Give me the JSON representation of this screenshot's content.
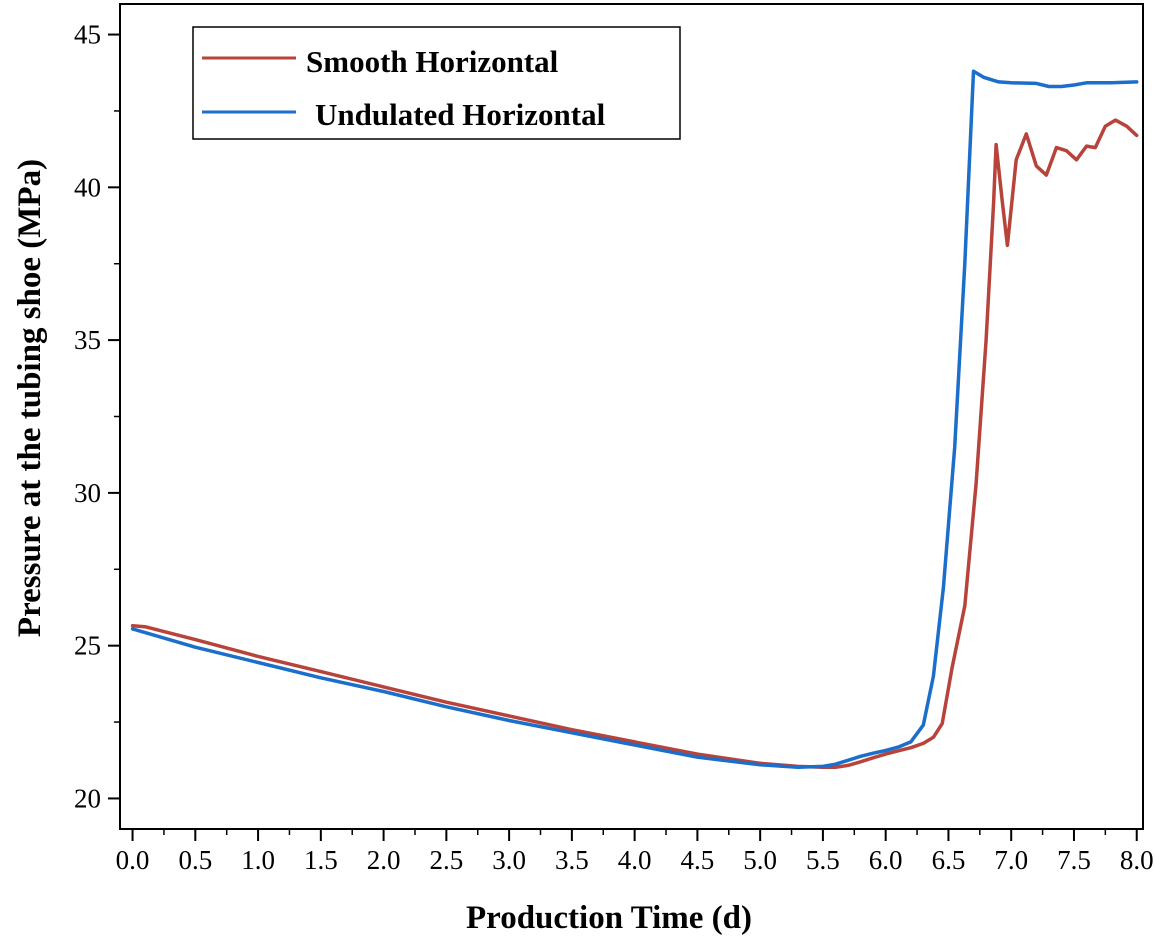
{
  "chart_data": {
    "type": "line",
    "xlabel": "Production Time (d)",
    "ylabel": "Pressure at the tubing shoe (MPa)",
    "xlim": [
      -0.1,
      8.05
    ],
    "ylim": [
      19,
      46
    ],
    "xticks": [
      "0.0",
      "0.5",
      "1.0",
      "1.5",
      "2.0",
      "2.5",
      "3.0",
      "3.5",
      "4.0",
      "4.5",
      "5.0",
      "5.5",
      "6.0",
      "6.5",
      "7.0",
      "7.5",
      "8.0"
    ],
    "yticks": [
      "20",
      "25",
      "30",
      "35",
      "40",
      "45"
    ],
    "legend_position": "top-left",
    "series": [
      {
        "name": "Smooth Horizontal",
        "color": "#b8433b",
        "points": [
          [
            0.0,
            25.65
          ],
          [
            0.1,
            25.62
          ],
          [
            0.5,
            25.2
          ],
          [
            1.0,
            24.65
          ],
          [
            1.5,
            24.15
          ],
          [
            2.0,
            23.65
          ],
          [
            2.5,
            23.15
          ],
          [
            3.0,
            22.7
          ],
          [
            3.5,
            22.25
          ],
          [
            4.0,
            21.85
          ],
          [
            4.5,
            21.45
          ],
          [
            5.0,
            21.15
          ],
          [
            5.3,
            21.05
          ],
          [
            5.5,
            21.02
          ],
          [
            5.6,
            21.02
          ],
          [
            5.7,
            21.08
          ],
          [
            5.8,
            21.2
          ],
          [
            5.9,
            21.33
          ],
          [
            6.0,
            21.45
          ],
          [
            6.1,
            21.56
          ],
          [
            6.2,
            21.66
          ],
          [
            6.3,
            21.8
          ],
          [
            6.38,
            22.0
          ],
          [
            6.45,
            22.45
          ],
          [
            6.53,
            24.3
          ],
          [
            6.63,
            26.3
          ],
          [
            6.72,
            30.3
          ],
          [
            6.8,
            35.0
          ],
          [
            6.86,
            39.5
          ],
          [
            6.88,
            41.4
          ],
          [
            6.93,
            39.5
          ],
          [
            6.97,
            38.1
          ],
          [
            7.04,
            40.9
          ],
          [
            7.12,
            41.75
          ],
          [
            7.2,
            40.7
          ],
          [
            7.28,
            40.4
          ],
          [
            7.36,
            41.3
          ],
          [
            7.44,
            41.2
          ],
          [
            7.52,
            40.9
          ],
          [
            7.6,
            41.35
          ],
          [
            7.67,
            41.3
          ],
          [
            7.75,
            42.0
          ],
          [
            7.83,
            42.2
          ],
          [
            7.92,
            42.0
          ],
          [
            8.0,
            41.7
          ]
        ]
      },
      {
        "name": "Undulated Horizontal",
        "color": "#1b6ec9",
        "points": [
          [
            0.0,
            25.55
          ],
          [
            0.5,
            24.95
          ],
          [
            1.0,
            24.45
          ],
          [
            1.5,
            23.95
          ],
          [
            2.0,
            23.5
          ],
          [
            2.5,
            23.0
          ],
          [
            3.0,
            22.55
          ],
          [
            3.5,
            22.15
          ],
          [
            4.0,
            21.75
          ],
          [
            4.5,
            21.35
          ],
          [
            5.0,
            21.1
          ],
          [
            5.3,
            21.02
          ],
          [
            5.5,
            21.05
          ],
          [
            5.6,
            21.12
          ],
          [
            5.7,
            21.25
          ],
          [
            5.8,
            21.38
          ],
          [
            5.9,
            21.48
          ],
          [
            6.0,
            21.57
          ],
          [
            6.1,
            21.68
          ],
          [
            6.2,
            21.85
          ],
          [
            6.3,
            22.4
          ],
          [
            6.38,
            24.0
          ],
          [
            6.46,
            26.9
          ],
          [
            6.55,
            31.5
          ],
          [
            6.63,
            37.5
          ],
          [
            6.7,
            43.8
          ],
          [
            6.78,
            43.6
          ],
          [
            6.9,
            43.45
          ],
          [
            7.0,
            43.42
          ],
          [
            7.2,
            43.4
          ],
          [
            7.3,
            43.3
          ],
          [
            7.4,
            43.3
          ],
          [
            7.5,
            43.35
          ],
          [
            7.6,
            43.42
          ],
          [
            7.8,
            43.42
          ],
          [
            8.0,
            43.45
          ]
        ]
      }
    ]
  }
}
